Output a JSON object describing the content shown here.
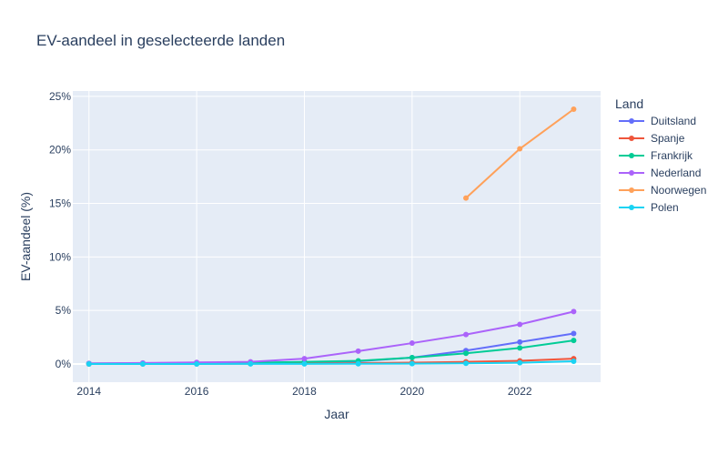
{
  "chart_data": {
    "type": "line",
    "title": "EV-aandeel in geselecteerde landen",
    "xlabel": "Jaar",
    "ylabel": "EV-aandeel (%)",
    "xlim": [
      2013.7,
      2023.5
    ],
    "ylim": [
      -1.7,
      25.5
    ],
    "x_ticks": [
      2014,
      2016,
      2018,
      2020,
      2022
    ],
    "y_ticks": [
      0,
      5,
      10,
      15,
      20,
      25
    ],
    "y_tick_suffix": "%",
    "grid": true,
    "background": "#e5ecf6",
    "legend": {
      "title": "Land",
      "placement": "right"
    },
    "series": [
      {
        "name": "Duitsland",
        "color": "#636efa",
        "x": [
          2014,
          2015,
          2016,
          2017,
          2018,
          2019,
          2020,
          2021,
          2022,
          2023
        ],
        "y": [
          0.02,
          0.03,
          0.05,
          0.08,
          0.15,
          0.25,
          0.6,
          1.25,
          2.05,
          2.85
        ]
      },
      {
        "name": "Spanje",
        "color": "#ef553b",
        "x": [
          2014,
          2015,
          2016,
          2017,
          2018,
          2019,
          2020,
          2021,
          2022,
          2023
        ],
        "y": [
          0.0,
          0.01,
          0.02,
          0.03,
          0.05,
          0.08,
          0.13,
          0.2,
          0.3,
          0.5
        ]
      },
      {
        "name": "Frankrijk",
        "color": "#00cc96",
        "x": [
          2014,
          2015,
          2016,
          2017,
          2018,
          2019,
          2020,
          2021,
          2022,
          2023
        ],
        "y": [
          0.05,
          0.07,
          0.09,
          0.12,
          0.2,
          0.3,
          0.6,
          1.0,
          1.5,
          2.2
        ]
      },
      {
        "name": "Nederland",
        "color": "#ab63fa",
        "x": [
          2014,
          2015,
          2016,
          2017,
          2018,
          2019,
          2020,
          2021,
          2022,
          2023
        ],
        "y": [
          0.05,
          0.1,
          0.15,
          0.2,
          0.5,
          1.2,
          1.95,
          2.75,
          3.7,
          4.9
        ]
      },
      {
        "name": "Noorwegen",
        "color": "#ffa15a",
        "x": [
          2021,
          2022,
          2023
        ],
        "y": [
          15.5,
          20.1,
          23.8
        ]
      },
      {
        "name": "Polen",
        "color": "#19d3f3",
        "x": [
          2014,
          2015,
          2016,
          2017,
          2018,
          2019,
          2020,
          2021,
          2022,
          2023
        ],
        "y": [
          0.0,
          0.0,
          0.0,
          0.01,
          0.01,
          0.02,
          0.03,
          0.06,
          0.12,
          0.25
        ]
      }
    ]
  }
}
